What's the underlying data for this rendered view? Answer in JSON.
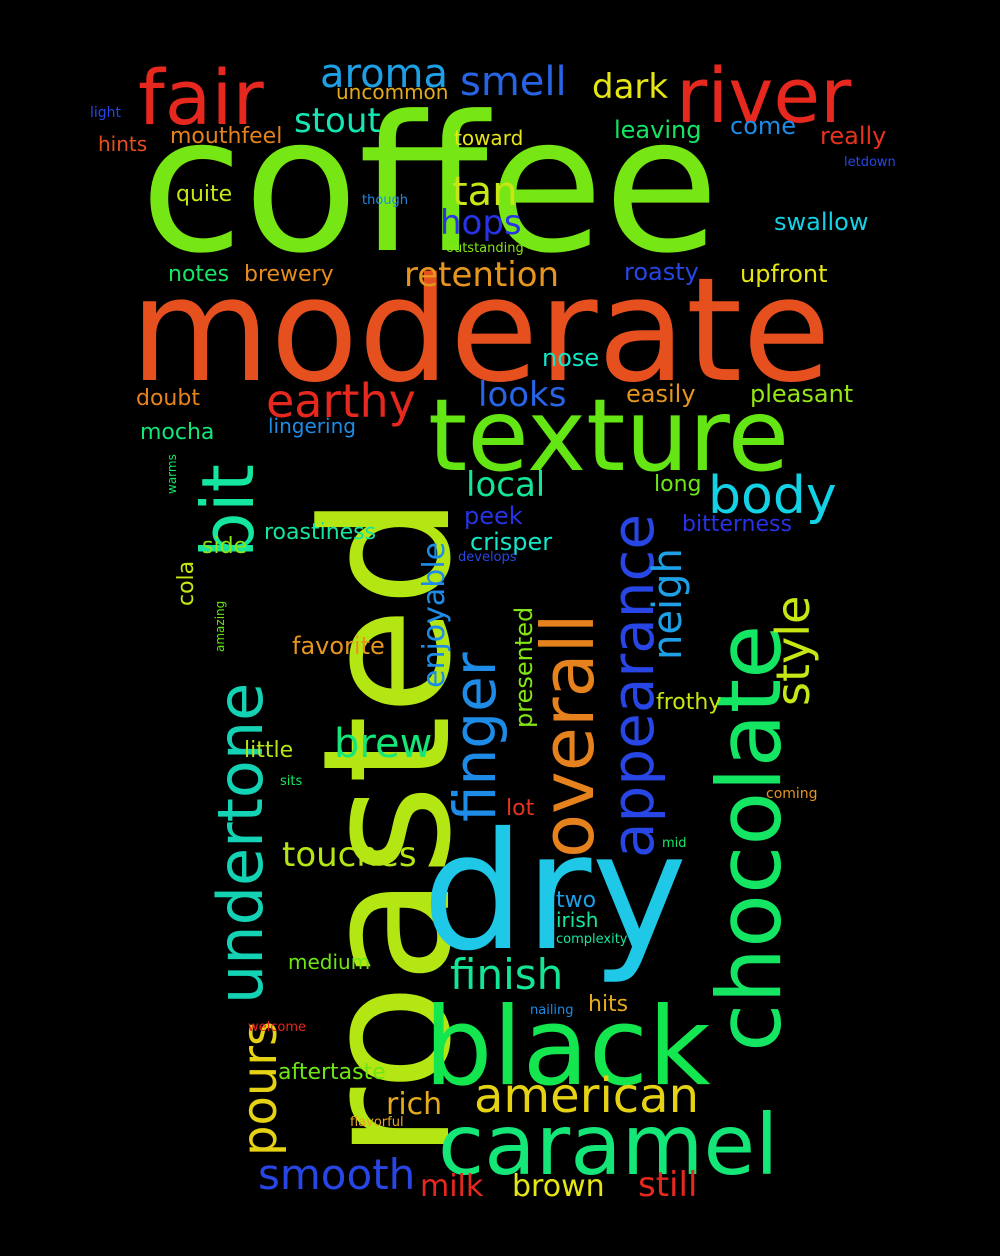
{
  "words": [
    {
      "text": "coffee",
      "color": "#76e614"
    },
    {
      "text": "moderate",
      "color": "#e6501e"
    },
    {
      "text": "roasted",
      "color": "#b4e614"
    },
    {
      "text": "dry",
      "color": "#1ec8e6"
    },
    {
      "text": "texture",
      "color": "#64e614"
    },
    {
      "text": "chocolate",
      "color": "#14e664"
    },
    {
      "text": "black",
      "color": "#14e650"
    },
    {
      "text": "caramel",
      "color": "#14e678"
    },
    {
      "text": "river",
      "color": "#e6281e"
    },
    {
      "text": "fair",
      "color": "#e6281e"
    },
    {
      "text": "overall",
      "color": "#e6821e"
    },
    {
      "text": "bit",
      "color": "#14e6a0"
    },
    {
      "text": "undertone",
      "color": "#14d2b4"
    },
    {
      "text": "appearance",
      "color": "#2846e6"
    },
    {
      "text": "finger",
      "color": "#1e8ce6"
    },
    {
      "text": "body",
      "color": "#14d2e6"
    },
    {
      "text": "style",
      "color": "#c8e614"
    },
    {
      "text": "american",
      "color": "#e6d214"
    },
    {
      "text": "pours",
      "color": "#e6d214"
    },
    {
      "text": "earthy",
      "color": "#e6281e"
    },
    {
      "text": "finish",
      "color": "#14e696"
    },
    {
      "text": "smooth",
      "color": "#2846e6"
    },
    {
      "text": "aroma",
      "color": "#1ea0e6"
    },
    {
      "text": "smell",
      "color": "#2864e6"
    },
    {
      "text": "tan",
      "color": "#c8e614"
    },
    {
      "text": "brew",
      "color": "#14e678"
    },
    {
      "text": "touches",
      "color": "#b4e614"
    },
    {
      "text": "neigh",
      "color": "#1ea0e6"
    },
    {
      "text": "retention",
      "color": "#e6961e"
    },
    {
      "text": "stout",
      "color": "#14e6b4"
    },
    {
      "text": "dark",
      "color": "#e6e614"
    },
    {
      "text": "hops",
      "color": "#2832e6"
    },
    {
      "text": "looks",
      "color": "#2864e6"
    },
    {
      "text": "local",
      "color": "#14e696"
    },
    {
      "text": "enjoyable",
      "color": "#1e8ce6"
    },
    {
      "text": "still",
      "color": "#e6281e"
    },
    {
      "text": "brown",
      "color": "#e6e614"
    },
    {
      "text": "milk",
      "color": "#e6281e"
    },
    {
      "text": "rich",
      "color": "#e6aa1e"
    },
    {
      "text": "presented",
      "color": "#82e614"
    },
    {
      "text": "upfront",
      "color": "#e6e614"
    },
    {
      "text": "pleasant",
      "color": "#96e614"
    },
    {
      "text": "easily",
      "color": "#e6961e"
    },
    {
      "text": "roasty",
      "color": "#2846e6"
    },
    {
      "text": "swallow",
      "color": "#14d2e6"
    },
    {
      "text": "leaving",
      "color": "#14e664"
    },
    {
      "text": "come",
      "color": "#1e8ce6"
    },
    {
      "text": "really",
      "color": "#e6321e"
    },
    {
      "text": "mouthfeel",
      "color": "#e6821e"
    },
    {
      "text": "uncommon",
      "color": "#e6aa1e"
    },
    {
      "text": "hints",
      "color": "#e6501e"
    },
    {
      "text": "quite",
      "color": "#c8e614"
    },
    {
      "text": "toward",
      "color": "#e6e614"
    },
    {
      "text": "notes",
      "color": "#14e664"
    },
    {
      "text": "brewery",
      "color": "#e68c1e"
    },
    {
      "text": "nose",
      "color": "#14e6c8"
    },
    {
      "text": "doubt",
      "color": "#e6821e"
    },
    {
      "text": "mocha",
      "color": "#14e678"
    },
    {
      "text": "lingering",
      "color": "#1e8ce6"
    },
    {
      "text": "long",
      "color": "#6ee614"
    },
    {
      "text": "bitterness",
      "color": "#2832e6"
    },
    {
      "text": "peek",
      "color": "#2832e6"
    },
    {
      "text": "crisper",
      "color": "#14e6c8"
    },
    {
      "text": "roastiness",
      "color": "#14e6a0"
    },
    {
      "text": "side",
      "color": "#8ce614"
    },
    {
      "text": "cola",
      "color": "#c8e614"
    },
    {
      "text": "favorite",
      "color": "#e6961e"
    },
    {
      "text": "frothy",
      "color": "#c8e614"
    },
    {
      "text": "little",
      "color": "#b4e614"
    },
    {
      "text": "lot",
      "color": "#e6321e"
    },
    {
      "text": "two",
      "color": "#1ea0e6"
    },
    {
      "text": "irish",
      "color": "#14e6a0"
    },
    {
      "text": "medium",
      "color": "#6ee614"
    },
    {
      "text": "hits",
      "color": "#e6aa1e"
    },
    {
      "text": "aftertaste",
      "color": "#6ee614"
    },
    {
      "text": "light",
      "color": "#2846e6"
    },
    {
      "text": "though",
      "color": "#1e8ce6"
    },
    {
      "text": "outstanding",
      "color": "#82e614"
    },
    {
      "text": "letdown",
      "color": "#2846e6"
    },
    {
      "text": "warms",
      "color": "#14e664"
    },
    {
      "text": "amazing",
      "color": "#64e614"
    },
    {
      "text": "develops",
      "color": "#2846e6"
    },
    {
      "text": "sits",
      "color": "#14e664"
    },
    {
      "text": "coming",
      "color": "#e6961e"
    },
    {
      "text": "mid",
      "color": "#14e664"
    },
    {
      "text": "complexity",
      "color": "#14e6a0"
    },
    {
      "text": "nailing",
      "color": "#1e8ce6"
    },
    {
      "text": "welcome",
      "color": "#e6281e"
    },
    {
      "text": "flavorful",
      "color": "#e6aa1e"
    }
  ]
}
